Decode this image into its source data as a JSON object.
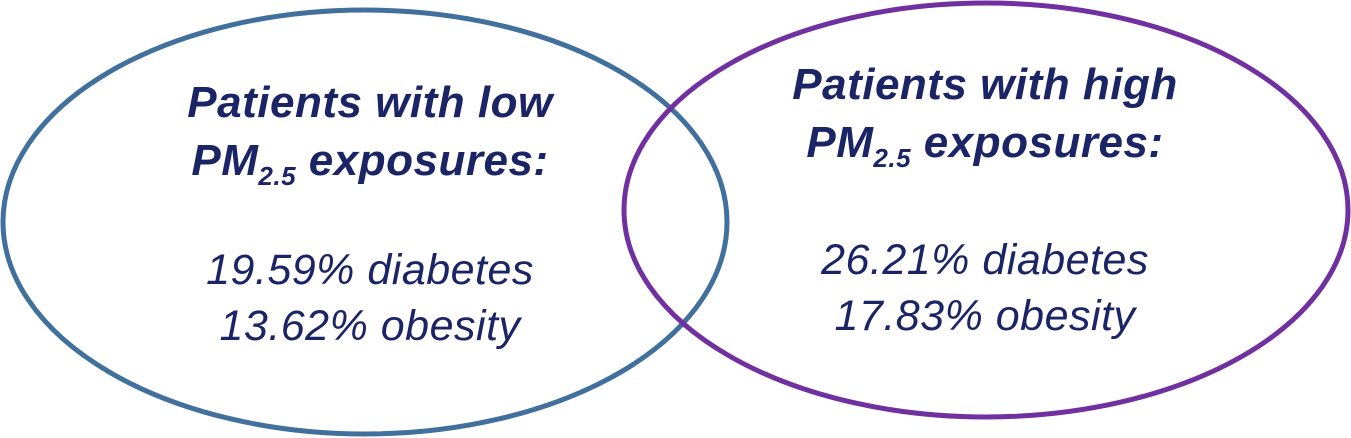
{
  "colors": {
    "low_circle": "#41709c",
    "high_circle": "#7030a0",
    "text": "#1b2465"
  },
  "groups": [
    {
      "heading_line1": "Patients with low",
      "heading_pm": "PM",
      "heading_sub": "2.5",
      "heading_tail": " exposures:",
      "stats": [
        "19.59% diabetes",
        "13.62% obesity"
      ]
    },
    {
      "heading_line1": "Patients with high",
      "heading_pm": "PM",
      "heading_sub": "2.5",
      "heading_tail": " exposures:",
      "stats": [
        "26.21% diabetes",
        "17.83% obesity"
      ]
    }
  ]
}
